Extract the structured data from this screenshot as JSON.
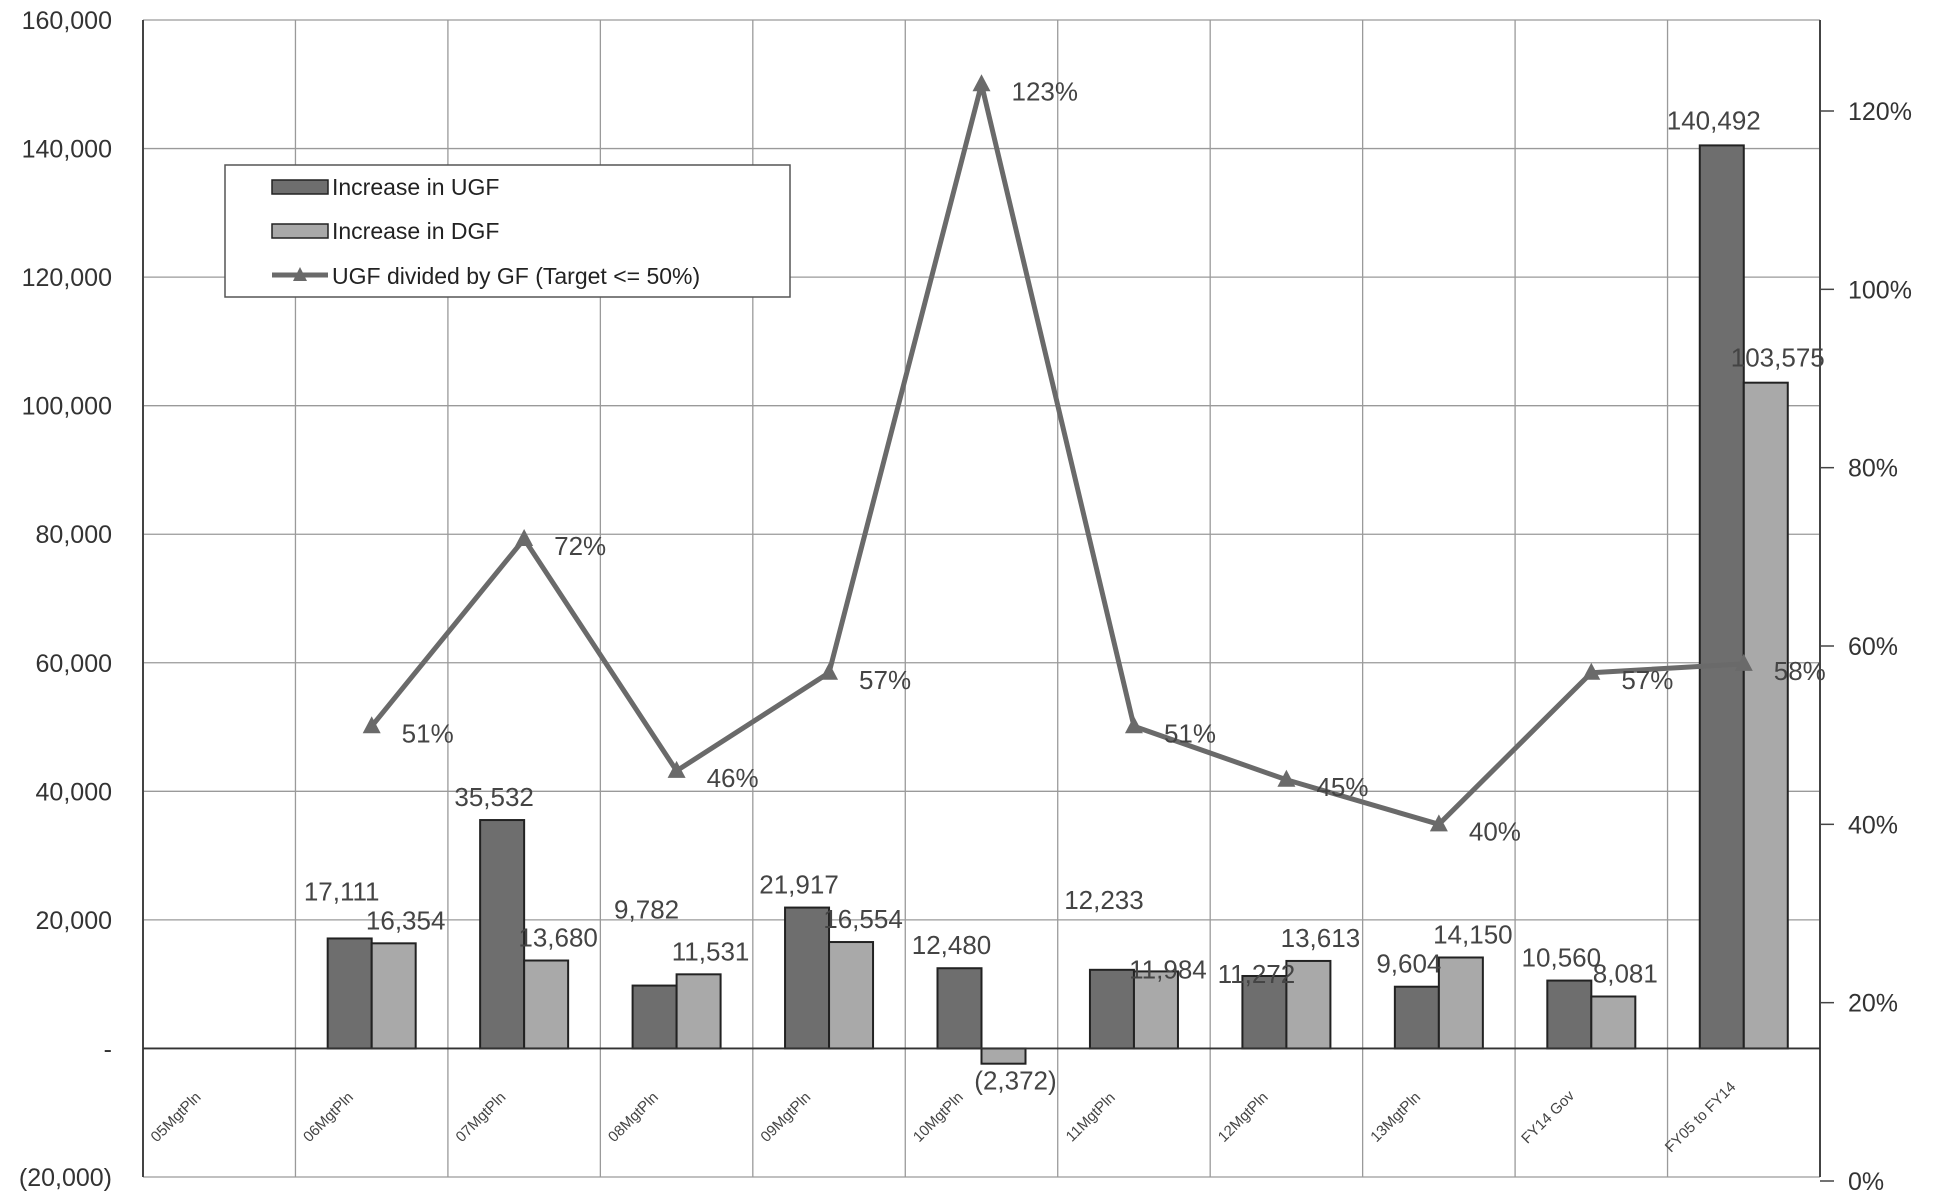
{
  "chart_data": {
    "type": "bar",
    "title": "",
    "categories": [
      "05MgtPln",
      "06MgtPln",
      "07MgtPln",
      "08MgtPln",
      "09MgtPln",
      "10MgtPln",
      "11MgtPln",
      "12MgtPln",
      "13MgtPln",
      "FY14 Gov",
      "FY05 to FY14"
    ],
    "series": [
      {
        "name": "Increase in UGF",
        "type": "bar",
        "axis": "left",
        "color": "#6e6e6e",
        "values": [
          null,
          17111,
          35532,
          9782,
          21917,
          12480,
          12233,
          11272,
          9604,
          10560,
          140492
        ],
        "labels": [
          null,
          "17,111",
          "35,532",
          "9,782",
          "21,917",
          "12,480",
          "12,233",
          "11,272",
          "9,604",
          "10,560",
          "140,492"
        ]
      },
      {
        "name": "Increase in DGF",
        "type": "bar",
        "axis": "left",
        "color": "#a9a9a9",
        "values": [
          null,
          16354,
          13680,
          11531,
          16554,
          -2372,
          11984,
          13613,
          14150,
          8081,
          103575
        ],
        "labels": [
          null,
          "16,354",
          "13,680",
          "11,531",
          "16,554",
          "(2,372)",
          "11,984",
          "13,613",
          "14,150",
          "8,081",
          "103,575"
        ]
      },
      {
        "name": "UGF divided by GF (Target <= 50%)",
        "type": "line",
        "axis": "right",
        "marker": "triangle",
        "color": "#6a6a6a",
        "values": [
          null,
          51,
          72,
          46,
          57,
          123,
          51,
          45,
          40,
          57,
          58
        ],
        "labels": [
          null,
          "51%",
          "72%",
          "46%",
          "57%",
          "123%",
          "51%",
          "45%",
          "40%",
          "57%",
          "58%"
        ]
      }
    ],
    "ylim": [
      -20000,
      160000
    ],
    "y_ticks": [
      "(20,000)",
      "-",
      "20,000",
      "40,000",
      "60,000",
      "80,000",
      "100,000",
      "120,000",
      "140,000",
      "160,000"
    ],
    "y2_ticks": [
      "0%",
      "20%",
      "40%",
      "60%",
      "80%",
      "100%",
      "120%"
    ],
    "y2_tick_values": [
      0,
      20,
      40,
      60,
      80,
      100,
      120
    ],
    "grid": true,
    "legend_position": "top-left"
  }
}
